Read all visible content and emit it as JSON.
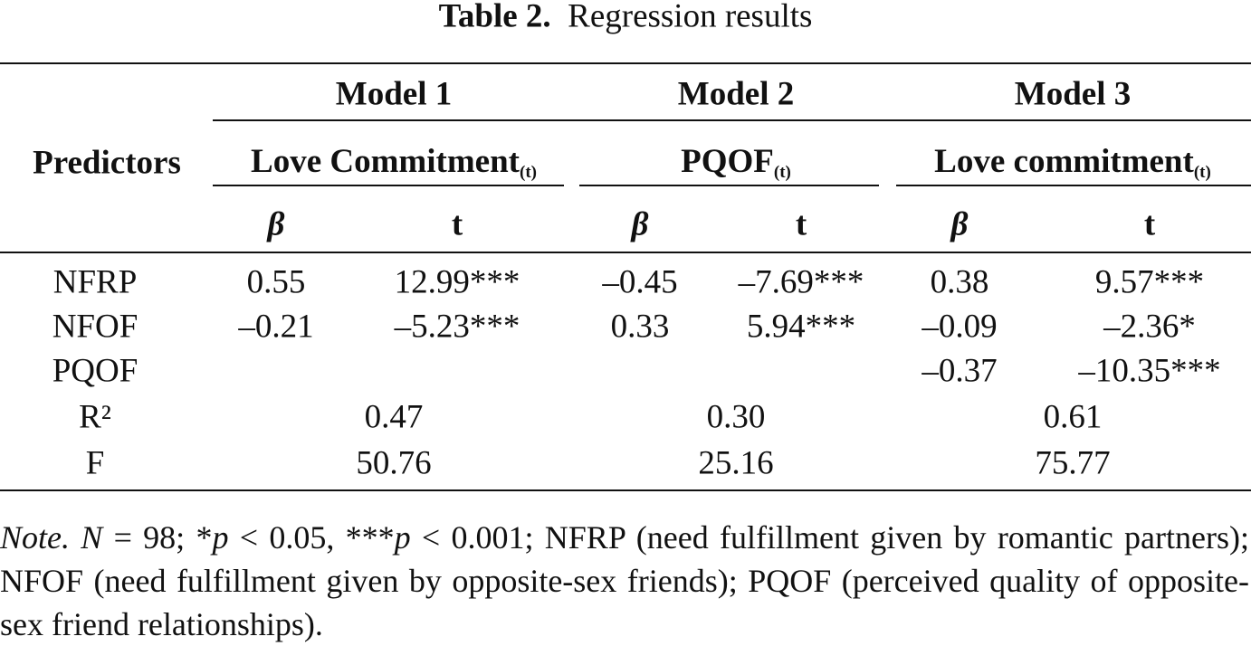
{
  "title": {
    "label": "Table 2.",
    "text": "Regression results"
  },
  "header": {
    "predictors": "Predictors",
    "models": [
      {
        "name": "Model 1",
        "dv": "Love Commitment",
        "dv_sub": "(t)",
        "stats": [
          "β",
          "t"
        ]
      },
      {
        "name": "Model 2",
        "dv": "PQOF",
        "dv_sub": "(t)",
        "stats": [
          "β",
          "t"
        ]
      },
      {
        "name": "Model 3",
        "dv": "Love commitment",
        "dv_sub": "(t)",
        "stats": [
          "β",
          "t"
        ]
      }
    ]
  },
  "rows": [
    {
      "label": "NFRP",
      "cells": [
        "0.55",
        "12.99***",
        "–0.45",
        "–7.69***",
        "0.38",
        "9.57***"
      ]
    },
    {
      "label": "NFOF",
      "cells": [
        "–0.21",
        "–5.23***",
        "0.33",
        "5.94***",
        "–0.09",
        "–2.36*"
      ]
    },
    {
      "label": "PQOF",
      "cells": [
        null,
        null,
        null,
        null,
        "–0.37",
        "–10.35***"
      ]
    }
  ],
  "summary": [
    {
      "label": "R²",
      "values": [
        "0.47",
        "0.30",
        "0.61"
      ]
    },
    {
      "label": "F",
      "values": [
        "50.76",
        "25.16",
        "75.77"
      ]
    }
  ],
  "note": [
    "Note.",
    " N",
    " = 98; *",
    "p",
    " < 0.05, ***",
    "p",
    " < 0.001; NFRP (need fulfillment given by romantic partners); NFOF (need fulfillment given by opposite-sex friends); PQOF (perceived quality of opposite-sex friend relationships)."
  ]
}
